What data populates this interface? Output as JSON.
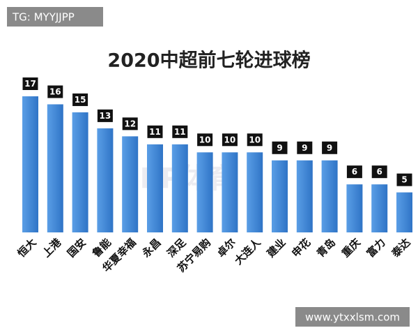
{
  "chart_data": {
    "type": "bar",
    "title": "2020中超前七轮进球榜",
    "categories": [
      "恒大",
      "上港",
      "国安",
      "鲁能",
      "华夏幸福",
      "永昌",
      "深足",
      "苏宁易购",
      "卓尔",
      "大连人",
      "建业",
      "申花",
      "青岛",
      "重庆",
      "富力",
      "泰达"
    ],
    "values": [
      17,
      16,
      15,
      13,
      12,
      11,
      11,
      10,
      10,
      10,
      9,
      9,
      9,
      6,
      6,
      5
    ],
    "color": "#3d86d8"
  },
  "overlay": {
    "tag": "TG: MYYJJPP",
    "site": "www.ytxxlsm.com",
    "logo": "PP体育"
  }
}
